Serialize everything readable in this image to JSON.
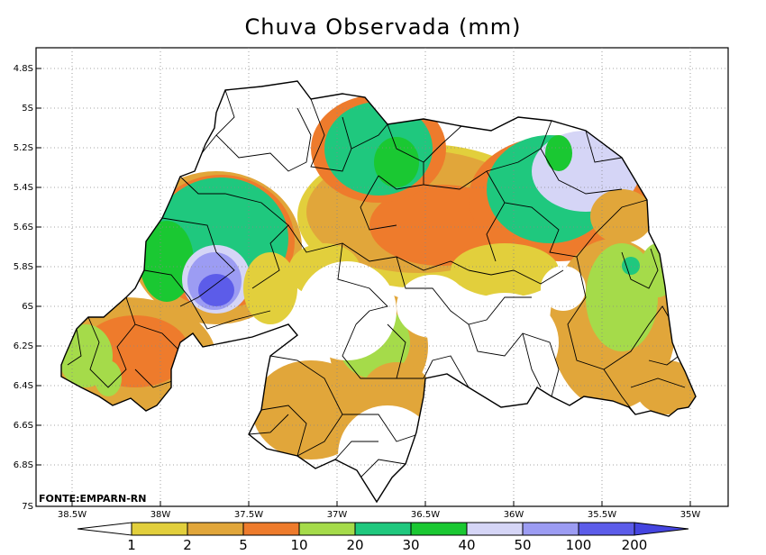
{
  "title": "Chuva Observada (mm)",
  "source": "FONTE:EMPARN-RN",
  "y_ticks": [
    "4.8S",
    "5S",
    "5.2S",
    "5.4S",
    "5.6S",
    "5.8S",
    "6S",
    "6.2S",
    "6.4S",
    "6.6S",
    "6.8S",
    "7S"
  ],
  "x_ticks": [
    "38.5W",
    "38W",
    "37.5W",
    "37W",
    "36.5W",
    "36W",
    "35.5W",
    "35W"
  ],
  "legend": {
    "labels": [
      "1",
      "2",
      "5",
      "10",
      "20",
      "30",
      "40",
      "50",
      "100",
      "200"
    ],
    "colors": [
      "#ffffff",
      "#e2cf3c",
      "#e1a63a",
      "#ee7b2c",
      "#a5db4a",
      "#1fc87e",
      "#1ac832",
      "#d5d5f6",
      "#9c9cf3",
      "#5c5ce9",
      "#4545e0"
    ]
  }
}
